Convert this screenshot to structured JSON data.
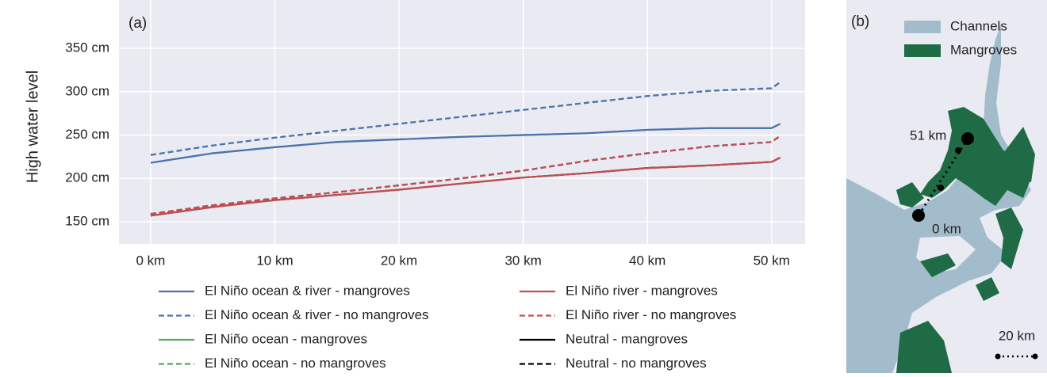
{
  "chart_data": {
    "type": "line",
    "annotations": [
      "(a)"
    ],
    "y_label": "High water level",
    "x": [
      0,
      5,
      10,
      15,
      20,
      25,
      30,
      35,
      40,
      45,
      50,
      50.7
    ],
    "xlim": [
      -2.55,
      52.7
    ],
    "xticks": [
      {
        "value": 0,
        "label": "0 km"
      },
      {
        "value": 10,
        "label": "10 km"
      },
      {
        "value": 20,
        "label": "20 km"
      },
      {
        "value": 30,
        "label": "30 km"
      },
      {
        "value": 40,
        "label": "40 km"
      },
      {
        "value": 50,
        "label": "50 km"
      }
    ],
    "ylim": [
      124.4,
      405.8
    ],
    "yticks": [
      {
        "value": 150,
        "label": "150 cm"
      },
      {
        "value": 200,
        "label": "200 cm"
      },
      {
        "value": 250,
        "label": "250 cm"
      },
      {
        "value": 300,
        "label": "300 cm"
      },
      {
        "value": 350,
        "label": "350 cm"
      }
    ],
    "grid": true,
    "legend": "bottom",
    "series": [
      {
        "name": "El Niño ocean & river - mangroves",
        "color": "#4c72b0",
        "linestyle": "solid",
        "values": [
          218,
          229,
          236,
          242,
          245,
          248,
          250,
          252,
          256,
          258,
          258,
          263
        ]
      },
      {
        "name": "El Niño ocean & river - no mangroves",
        "color": "#4c72b0",
        "linestyle": "dashed",
        "values": [
          227,
          238,
          247,
          255,
          263,
          271,
          279,
          287,
          295,
          301,
          304,
          311
        ]
      },
      {
        "name": "El Niño ocean - mangroves",
        "color": "#55a868",
        "linestyle": "solid",
        "values": [
          218,
          229,
          236,
          242,
          245,
          248,
          250,
          252,
          256,
          258,
          258,
          263
        ]
      },
      {
        "name": "El Niño ocean - no mangroves",
        "color": "#55a868",
        "linestyle": "dashed",
        "values": [
          227,
          238,
          247,
          255,
          263,
          271,
          279,
          287,
          295,
          301,
          304,
          311
        ]
      },
      {
        "name": "El Niño river - mangroves",
        "color": "#c44e52",
        "linestyle": "solid",
        "values": [
          157,
          167,
          175,
          181,
          187,
          194,
          201,
          206,
          212,
          215,
          219,
          224
        ]
      },
      {
        "name": "El Niño river - no mangroves",
        "color": "#c44e52",
        "linestyle": "dashed",
        "values": [
          159,
          169,
          177,
          184,
          192,
          200,
          209,
          220,
          229,
          237,
          242,
          249
        ]
      },
      {
        "name": "Neutral - mangroves",
        "color": "#000000",
        "linestyle": "solid",
        "values": [
          157,
          167,
          175,
          181,
          187,
          194,
          201,
          206,
          212,
          215,
          219,
          224
        ]
      },
      {
        "name": "Neutral - no mangroves",
        "color": "#000000",
        "linestyle": "dashed",
        "values": [
          159,
          169,
          177,
          184,
          192,
          200,
          209,
          220,
          229,
          237,
          242,
          249
        ]
      }
    ]
  },
  "map": {
    "label": "(b)",
    "legend": [
      {
        "name": "Channels",
        "color": "#a3bccb"
      },
      {
        "name": "Mangroves",
        "color": "#1f6b45"
      }
    ],
    "markers": [
      "51 km",
      "0 km"
    ],
    "scale_label": "20 km"
  }
}
